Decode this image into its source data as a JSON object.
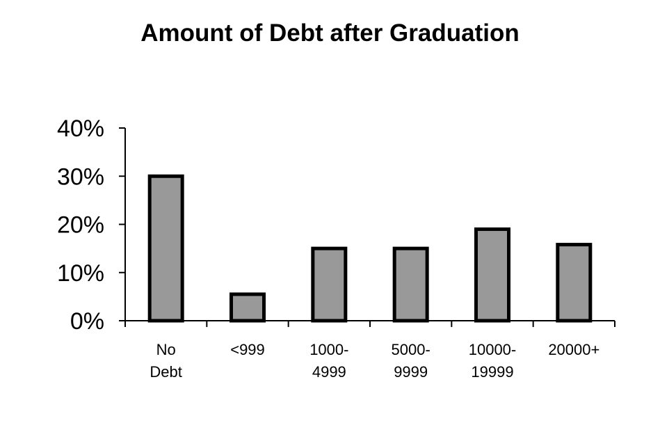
{
  "chart_data": {
    "type": "bar",
    "title": "Amount of Debt after Graduation",
    "categories": [
      [
        "No",
        "Debt"
      ],
      [
        "<999"
      ],
      [
        "1000-",
        "4999"
      ],
      [
        "5000-",
        "9999"
      ],
      [
        "10000-",
        "19999"
      ],
      [
        "20000+"
      ]
    ],
    "values": [
      30,
      5.5,
      15,
      15,
      19,
      15.8
    ],
    "yticks": [
      "0%",
      "10%",
      "20%",
      "30%",
      "40%"
    ],
    "ylim": [
      0,
      40
    ],
    "xlabel": "",
    "ylabel": "",
    "grid": false,
    "bar_color": "#999999",
    "bar_edge_color": "#000000"
  }
}
